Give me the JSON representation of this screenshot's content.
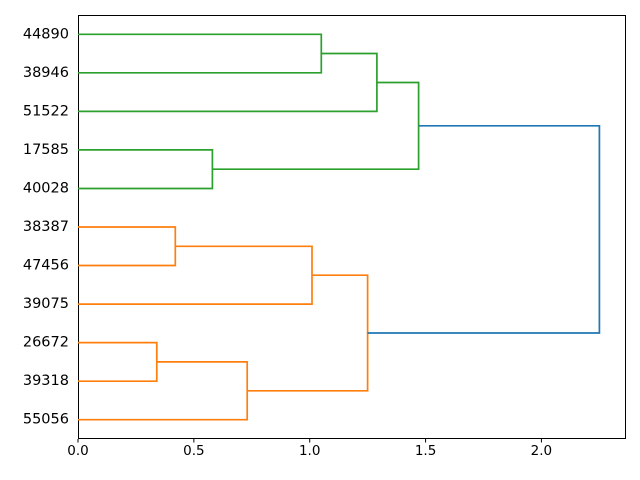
{
  "figure": {
    "kind": "dendrogram-plot",
    "background": "#ffffff",
    "frame_color": "#000000",
    "text_color": "#000000"
  },
  "chart_data": {
    "type": "dendrogram",
    "orientation": "right",
    "title": "",
    "xlabel": "",
    "ylabel": "",
    "grid": false,
    "legend": null,
    "leaves": [
      "44890",
      "38946",
      "51522",
      "17585",
      "40028",
      "38387",
      "47456",
      "39075",
      "26672",
      "39318",
      "55056"
    ],
    "links": [
      {
        "id": "A",
        "children": [
          "44890",
          "38946"
        ],
        "height": 1.05,
        "color_key": "green"
      },
      {
        "id": "B",
        "children": [
          "A",
          "51522"
        ],
        "height": 1.29,
        "color_key": "green"
      },
      {
        "id": "C",
        "children": [
          "17585",
          "40028"
        ],
        "height": 0.58,
        "color_key": "green"
      },
      {
        "id": "D",
        "children": [
          "B",
          "C"
        ],
        "height": 1.47,
        "color_key": "green"
      },
      {
        "id": "E",
        "children": [
          "38387",
          "47456"
        ],
        "height": 0.42,
        "color_key": "orange"
      },
      {
        "id": "F",
        "children": [
          "E",
          "39075"
        ],
        "height": 1.01,
        "color_key": "orange"
      },
      {
        "id": "G",
        "children": [
          "26672",
          "39318"
        ],
        "height": 0.34,
        "color_key": "orange"
      },
      {
        "id": "H",
        "children": [
          "G",
          "55056"
        ],
        "height": 0.73,
        "color_key": "orange"
      },
      {
        "id": "I",
        "children": [
          "F",
          "H"
        ],
        "height": 1.25,
        "color_key": "orange"
      },
      {
        "id": "ROOT",
        "children": [
          "D",
          "I"
        ],
        "height": 2.25,
        "color_key": "blue"
      }
    ],
    "link_colors": {
      "green": "#2ca02c",
      "orange": "#ff7f0e",
      "blue": "#1f77b4"
    },
    "xticks": [
      "0.0",
      "0.5",
      "1.0",
      "1.5",
      "2.0"
    ],
    "xtick_values": [
      0.0,
      0.5,
      1.0,
      1.5,
      2.0
    ],
    "xlim": [
      0,
      2.365
    ],
    "ylim": [
      0,
      110
    ],
    "leaf_axis_positions": [
      105,
      95,
      85,
      75,
      65,
      55,
      45,
      35,
      25,
      15,
      5
    ]
  }
}
